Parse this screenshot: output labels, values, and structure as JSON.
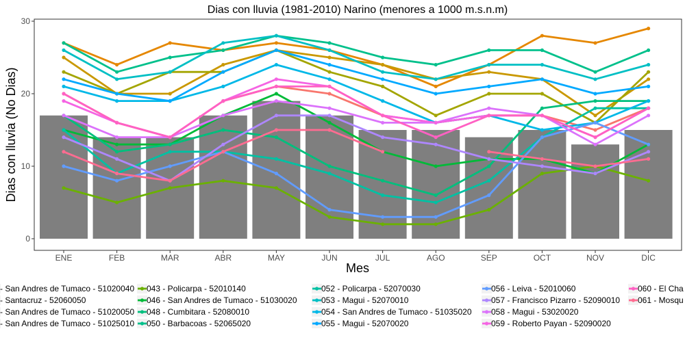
{
  "chart_data": {
    "type": "bar+line",
    "title": "Dias con lluvia (1981-2010) Narino (menores a 1000 m.s.n.m)",
    "xlabel": "Mes",
    "ylabel": "Dias con lluvia (No Dias)",
    "categories": [
      "ENE",
      "FEB",
      "MAR",
      "ABR",
      "MAY",
      "JUN",
      "JUL",
      "AGO",
      "SEP",
      "OCT",
      "NOV",
      "DIC"
    ],
    "ylim": [
      0,
      30
    ],
    "yticks": [
      0,
      10,
      20,
      30
    ],
    "grid": false,
    "legend_position": "bottom",
    "bar_color": "#7f7f7f",
    "bar_values": [
      17,
      14,
      14,
      17,
      19,
      17,
      15,
      15,
      14,
      15,
      13,
      15
    ],
    "series": [
      {
        "name": "- San Andres de Tumaco - 51020040",
        "color": "#F8766D",
        "values": [
          20,
          16,
          14,
          19,
          21,
          20,
          17,
          16,
          17,
          17,
          15,
          18
        ]
      },
      {
        "name": "- Santacruz - 52060050",
        "color": "#E58700",
        "values": [
          27,
          24,
          27,
          26,
          27,
          26,
          24,
          21,
          24,
          28,
          27,
          29
        ]
      },
      {
        "name": "- San Andres de Tumaco - 51020050",
        "color": "#C99800",
        "values": [
          25,
          20,
          20,
          24,
          26,
          25,
          24,
          22,
          23,
          22,
          17,
          22
        ]
      },
      {
        "name": "- San Andres de Tumaco - 51025010",
        "color": "#A3A500",
        "values": [
          23,
          20,
          23,
          23,
          26,
          23,
          21,
          17,
          20,
          20,
          16,
          23
        ]
      },
      {
        "name": "043 - Policarpa - 52010140",
        "color": "#6BB100",
        "values": [
          7,
          5,
          7,
          8,
          7,
          3,
          2,
          2,
          4,
          9,
          10,
          8
        ]
      },
      {
        "name": "046 - San Andres de Tumaco - 51030020",
        "color": "#00BA38",
        "values": [
          15,
          13,
          13,
          17,
          20,
          16,
          12,
          10,
          11,
          11,
          9,
          13
        ]
      },
      {
        "name": "048 - Cumbitara - 52080010",
        "color": "#00BF7D",
        "values": [
          17,
          12,
          13,
          15,
          14,
          10,
          8,
          6,
          10,
          18,
          19,
          19
        ]
      },
      {
        "name": "050 - Barbacoas - 52065020",
        "color": "#00C08B",
        "values": [
          27,
          23,
          25,
          26,
          28,
          27,
          25,
          24,
          26,
          26,
          23,
          26
        ]
      },
      {
        "name": "052 - Policarpa - 52070030",
        "color": "#00C1A3",
        "values": [
          15,
          9,
          12,
          12,
          11,
          9,
          6,
          5,
          8,
          14,
          18,
          18
        ]
      },
      {
        "name": "053 - Magui - 52070010",
        "color": "#00BFC4",
        "values": [
          26,
          22,
          23,
          27,
          28,
          26,
          23,
          22,
          24,
          24,
          22,
          24
        ]
      },
      {
        "name": "054 - San Andres de Tumaco - 51035020",
        "color": "#00B8E7",
        "values": [
          21,
          19,
          19,
          21,
          24,
          22,
          19,
          16,
          17,
          15,
          16,
          19
        ]
      },
      {
        "name": "055 - Magui - 52070020",
        "color": "#00A9FF",
        "values": [
          22,
          20,
          19,
          23,
          26,
          24,
          22,
          20,
          21,
          22,
          20,
          21
        ]
      },
      {
        "name": "056 - Leiva - 52010060",
        "color": "#619CFF",
        "values": [
          10,
          8,
          10,
          12,
          9,
          4,
          3,
          3,
          6,
          14,
          16,
          13
        ]
      },
      {
        "name": "057 - Francisco Pizarro - 52090010",
        "color": "#AE87FF",
        "values": [
          14,
          11,
          8,
          13,
          17,
          17,
          14,
          13,
          11,
          10,
          9,
          12
        ]
      },
      {
        "name": "058 - Magui - 53020020",
        "color": "#DB72FB",
        "values": [
          17,
          14,
          14,
          17,
          19,
          18,
          16,
          16,
          18,
          17,
          13,
          17
        ]
      },
      {
        "name": "059 - Roberto Payan - 52090020",
        "color": "#F564E3",
        "values": [
          19,
          16,
          14,
          19,
          22,
          21,
          17,
          16,
          17,
          17,
          14,
          18
        ]
      },
      {
        "name": "060 - El Cha",
        "color": "#FF61C3",
        "values": [
          20,
          16,
          14,
          19,
          21,
          21,
          17,
          14,
          17,
          17,
          14,
          18
        ]
      },
      {
        "name": "061 - Mosqu",
        "color": "#FF6C91",
        "values": [
          12,
          9,
          8,
          12,
          15,
          15,
          12,
          null,
          12,
          11,
          10,
          11
        ]
      }
    ]
  }
}
